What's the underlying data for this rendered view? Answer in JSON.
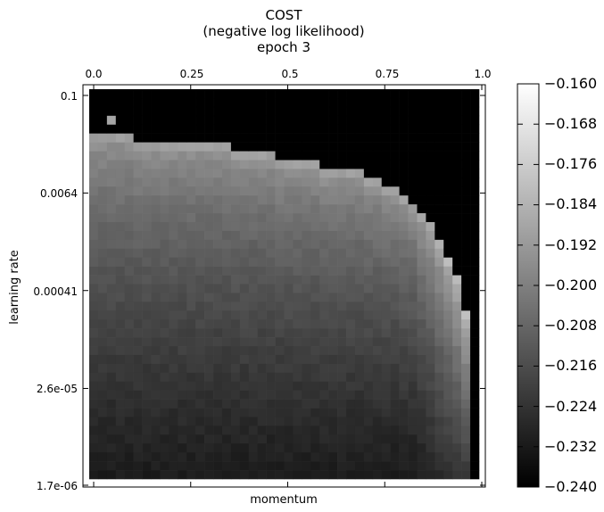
{
  "chart_data": {
    "type": "heatmap",
    "title_lines": [
      "COST",
      "(negative log likelihood)",
      "epoch 3"
    ],
    "xlabel": "momentum",
    "ylabel": "learning rate",
    "x_tick_labels": [
      "0.0",
      "0.25",
      "0.5",
      "0.75",
      "1.0"
    ],
    "x_ticks": [
      0.0,
      0.25,
      0.5,
      0.75,
      1.0
    ],
    "xlim": [
      0.0,
      1.0
    ],
    "x_axis_position": "top",
    "y_tick_labels": [
      "0.1",
      "0.0064",
      "0.00041",
      "2.6e-05",
      "1.7e-06"
    ],
    "y_ticks": [
      0.1,
      0.0064,
      0.00041,
      2.6e-05,
      1.7e-06
    ],
    "ylim": [
      1.7e-06,
      0.1
    ],
    "y_scale": "log",
    "grid_cols": 44,
    "grid_rows": 44,
    "colormap": "gray",
    "colorbar": {
      "vmin": -0.24,
      "vmax": -0.16,
      "ticks": [
        -0.24,
        -0.232,
        -0.224,
        -0.216,
        -0.208,
        -0.2,
        -0.192,
        -0.184,
        -0.176,
        -0.168,
        -0.16
      ],
      "tick_labels": [
        "−0.240",
        "−0.232",
        "−0.224",
        "−0.216",
        "−0.208",
        "−0.200",
        "−0.192",
        "−0.184",
        "−0.176",
        "−0.168",
        "−0.160"
      ],
      "position": "right"
    },
    "dark_region_value": -0.24,
    "boundary_row_by_col": [
      5,
      5,
      5,
      5,
      5,
      6,
      6,
      6,
      6,
      6,
      6,
      6,
      6,
      6,
      6,
      6,
      7,
      7,
      7,
      7,
      7,
      8,
      8,
      8,
      8,
      8,
      9,
      9,
      9,
      9,
      9,
      10,
      10,
      11,
      11,
      12,
      13,
      14,
      15,
      17,
      19,
      21,
      25,
      44
    ],
    "surface_values": {
      "top_band": -0.192,
      "mid": -0.208,
      "bottom": -0.232,
      "edge_warm": -0.196
    }
  }
}
